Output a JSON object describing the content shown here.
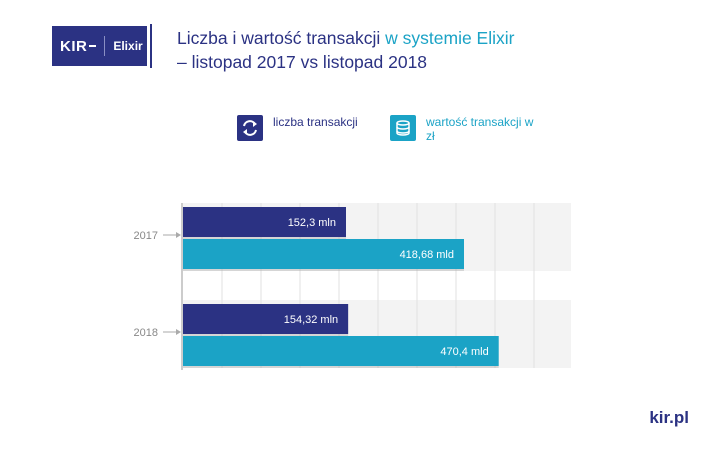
{
  "logo": {
    "kir": "KIR",
    "elixir": "Elixir"
  },
  "title": {
    "part1": "Liczba i wartość transakcji ",
    "highlight": "w systemie Elixir",
    "part2": "– listopad 2017 vs listopad 2018"
  },
  "legend": [
    {
      "label": "liczba transakcji",
      "color": "#2b3283",
      "icon": "exchange-icon"
    },
    {
      "label": "wartość transakcji w zł",
      "color": "#1ba3c6",
      "icon": "coins-icon"
    }
  ],
  "chart_data": {
    "type": "bar",
    "orientation": "horizontal",
    "categories": [
      "2017",
      "2018"
    ],
    "series": [
      {
        "name": "liczba transakcji",
        "values": [
          152.3,
          154.32
        ],
        "unit": "mln",
        "labels": [
          "152,3 mln",
          "154,32 mln"
        ],
        "color": "#2b3283"
      },
      {
        "name": "wartość transakcji w zł",
        "values": [
          418.68,
          470.4
        ],
        "unit": "mld",
        "labels": [
          "418,68 mld",
          "470,4 mld"
        ],
        "color": "#1ba3c6"
      }
    ],
    "grid": true,
    "axis_labels_shown": false
  },
  "footer": {
    "site": "kir.pl"
  }
}
